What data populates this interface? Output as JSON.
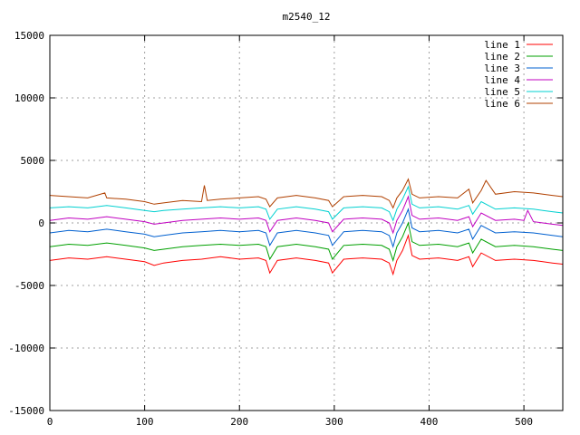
{
  "chart_data": {
    "type": "line",
    "title": "m2540_12",
    "xlabel": "",
    "ylabel": "",
    "xlim": [
      0,
      541
    ],
    "ylim": [
      -15000,
      15000
    ],
    "x_ticks": [
      0,
      100,
      200,
      300,
      400,
      500
    ],
    "y_ticks": [
      -15000,
      -10000,
      -5000,
      0,
      5000,
      10000,
      15000
    ],
    "grid": true,
    "legend_position": "top-right",
    "series": [
      {
        "name": "line 1",
        "color": "#ff0000",
        "x": [
          0,
          20,
          40,
          60,
          80,
          100,
          110,
          120,
          140,
          160,
          180,
          200,
          220,
          228,
          232,
          240,
          260,
          280,
          294,
          298,
          310,
          330,
          350,
          358,
          362,
          366,
          372,
          378,
          382,
          390,
          410,
          430,
          442,
          446,
          455,
          470,
          490,
          510,
          520,
          530,
          541
        ],
        "y": [
          -3000,
          -2800,
          -2900,
          -2700,
          -2900,
          -3100,
          -3400,
          -3200,
          -3000,
          -2900,
          -2700,
          -2900,
          -2800,
          -3000,
          -4000,
          -3000,
          -2800,
          -3000,
          -3200,
          -4000,
          -2900,
          -2800,
          -2900,
          -3200,
          -4100,
          -3000,
          -2200,
          -1000,
          -2600,
          -2900,
          -2800,
          -3000,
          -2700,
          -3500,
          -2400,
          -3000,
          -2900,
          -3000,
          -3100,
          -3200,
          -3300
        ]
      },
      {
        "name": "line 2",
        "color": "#00a000",
        "x": [
          0,
          20,
          40,
          60,
          80,
          100,
          110,
          120,
          140,
          160,
          180,
          200,
          220,
          228,
          232,
          240,
          260,
          280,
          294,
          298,
          310,
          330,
          350,
          358,
          362,
          366,
          372,
          378,
          382,
          390,
          410,
          430,
          442,
          446,
          455,
          470,
          490,
          510,
          520,
          530,
          541
        ],
        "y": [
          -1900,
          -1700,
          -1800,
          -1600,
          -1800,
          -2000,
          -2200,
          -2100,
          -1900,
          -1800,
          -1700,
          -1800,
          -1700,
          -1900,
          -2900,
          -1900,
          -1700,
          -1900,
          -2100,
          -2900,
          -1800,
          -1700,
          -1800,
          -2100,
          -3000,
          -1900,
          -1100,
          0,
          -1500,
          -1800,
          -1700,
          -1900,
          -1600,
          -2400,
          -1300,
          -1900,
          -1800,
          -1900,
          -2000,
          -2100,
          -2200
        ]
      },
      {
        "name": "line 3",
        "color": "#0060d0",
        "x": [
          0,
          20,
          40,
          60,
          80,
          100,
          110,
          120,
          140,
          160,
          180,
          200,
          220,
          228,
          232,
          240,
          260,
          280,
          294,
          298,
          310,
          330,
          350,
          358,
          362,
          366,
          372,
          378,
          382,
          390,
          410,
          430,
          442,
          446,
          455,
          470,
          490,
          510,
          520,
          530,
          541
        ],
        "y": [
          -800,
          -600,
          -700,
          -500,
          -700,
          -900,
          -1100,
          -1000,
          -800,
          -700,
          -600,
          -700,
          -600,
          -800,
          -1800,
          -800,
          -600,
          -800,
          -1000,
          -1800,
          -700,
          -600,
          -700,
          -1000,
          -1900,
          -800,
          0,
          1100,
          -400,
          -700,
          -600,
          -800,
          -500,
          -1300,
          -200,
          -800,
          -700,
          -800,
          -900,
          -1000,
          -1100
        ]
      },
      {
        "name": "line 4",
        "color": "#c000c0",
        "x": [
          0,
          20,
          40,
          60,
          80,
          100,
          110,
          120,
          140,
          160,
          180,
          200,
          220,
          228,
          232,
          240,
          260,
          280,
          294,
          298,
          310,
          330,
          350,
          358,
          362,
          366,
          372,
          378,
          382,
          390,
          410,
          430,
          442,
          446,
          455,
          470,
          490,
          500,
          504,
          510,
          520,
          530,
          541
        ],
        "y": [
          200,
          400,
          300,
          500,
          300,
          100,
          -100,
          0,
          200,
          300,
          400,
          300,
          400,
          200,
          -700,
          200,
          400,
          200,
          0,
          -700,
          300,
          400,
          300,
          0,
          -800,
          200,
          1000,
          2100,
          600,
          300,
          400,
          200,
          500,
          -300,
          800,
          200,
          300,
          200,
          1000,
          100,
          0,
          -100,
          -200
        ]
      },
      {
        "name": "line 5",
        "color": "#00d0d0",
        "x": [
          0,
          20,
          40,
          60,
          80,
          100,
          110,
          120,
          140,
          160,
          180,
          200,
          220,
          228,
          232,
          240,
          260,
          280,
          294,
          298,
          310,
          330,
          350,
          358,
          362,
          366,
          372,
          378,
          382,
          390,
          410,
          430,
          442,
          446,
          455,
          470,
          490,
          510,
          520,
          530,
          541
        ],
        "y": [
          1200,
          1300,
          1200,
          1400,
          1200,
          1000,
          900,
          1000,
          1100,
          1200,
          1300,
          1200,
          1300,
          1100,
          300,
          1100,
          1300,
          1100,
          900,
          300,
          1200,
          1300,
          1200,
          900,
          200,
          1100,
          1900,
          2900,
          1500,
          1200,
          1300,
          1100,
          1400,
          700,
          1700,
          1100,
          1200,
          1100,
          1000,
          900,
          800
        ]
      },
      {
        "name": "line 6",
        "color": "#b04000",
        "x": [
          0,
          20,
          40,
          58,
          60,
          80,
          100,
          110,
          120,
          140,
          160,
          163,
          166,
          180,
          200,
          220,
          228,
          232,
          240,
          260,
          280,
          294,
          298,
          310,
          330,
          350,
          358,
          362,
          366,
          372,
          378,
          382,
          390,
          410,
          430,
          442,
          446,
          455,
          460,
          470,
          490,
          510,
          520,
          530,
          541
        ],
        "y": [
          2200,
          2100,
          2000,
          2400,
          2000,
          1900,
          1700,
          1500,
          1600,
          1800,
          1700,
          3000,
          1800,
          1900,
          2000,
          2100,
          1900,
          1300,
          2000,
          2200,
          2000,
          1800,
          1300,
          2100,
          2200,
          2100,
          1800,
          1200,
          2000,
          2600,
          3500,
          2300,
          2000,
          2100,
          2000,
          2700,
          1600,
          2600,
          3400,
          2300,
          2500,
          2400,
          2300,
          2200,
          2100
        ]
      }
    ]
  }
}
